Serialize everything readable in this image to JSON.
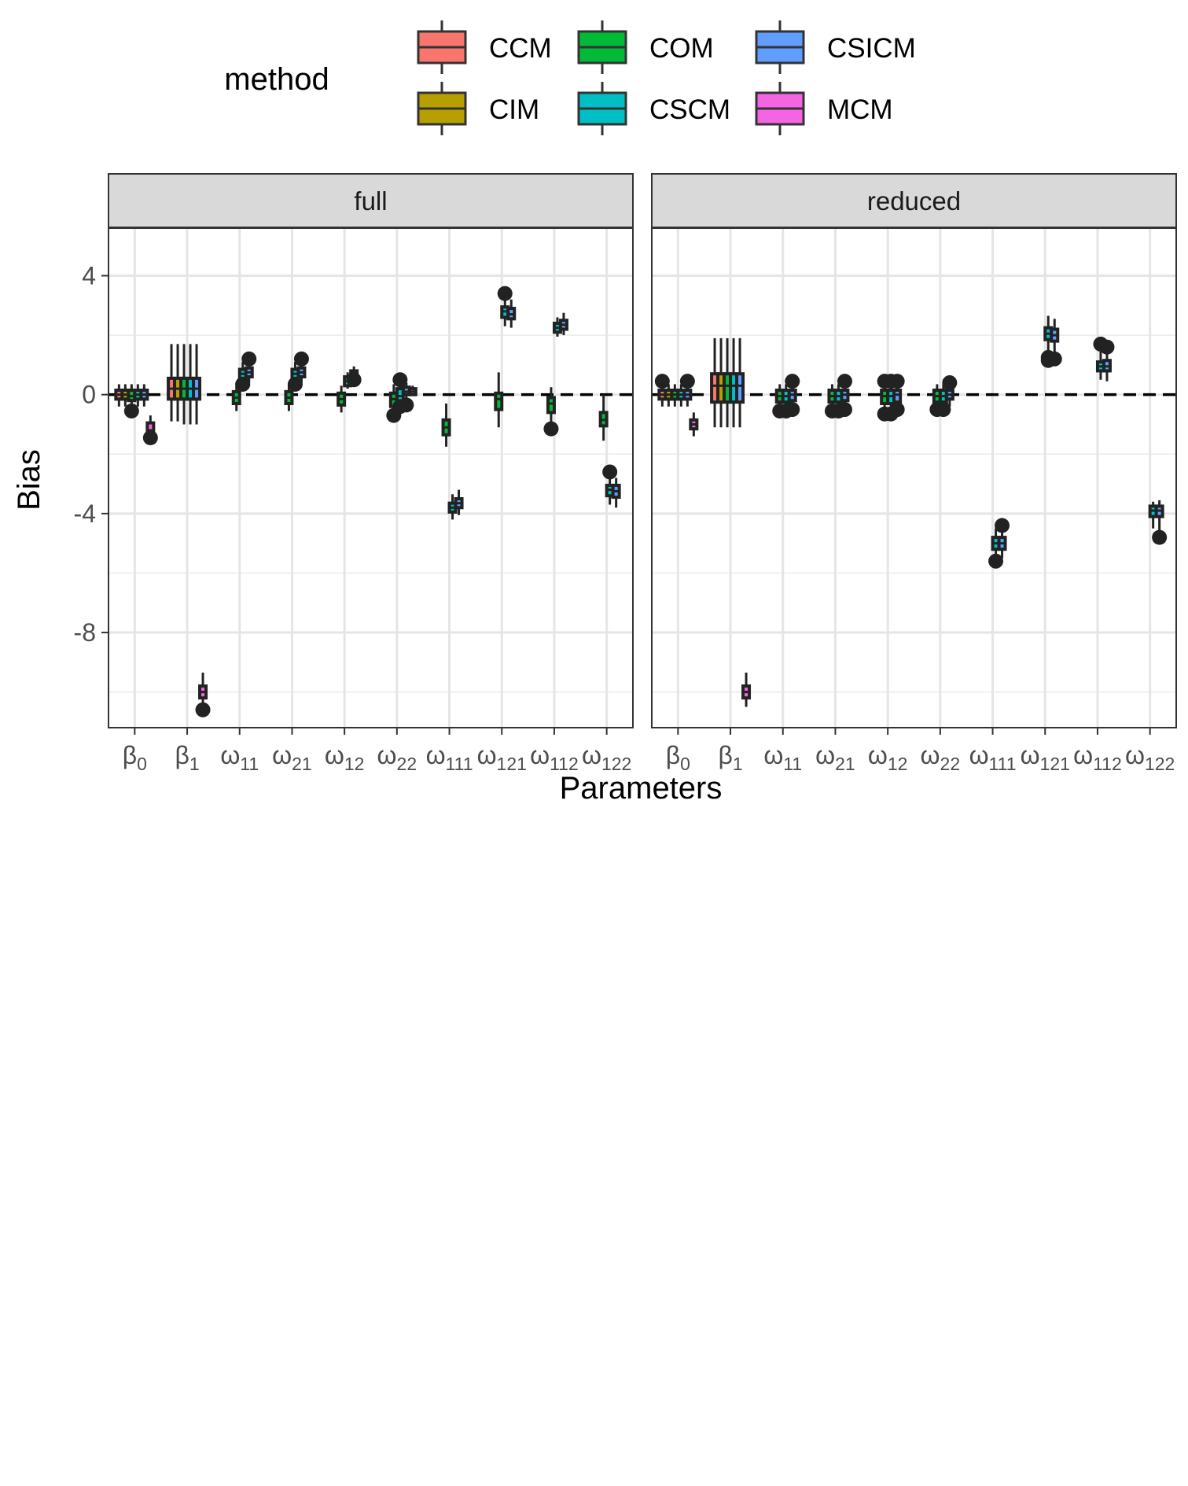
{
  "chart_data": {
    "type": "boxplot",
    "title": "",
    "xlabel": "Parameters",
    "ylabel": "Bias",
    "ylim": [
      -11.2,
      5.6
    ],
    "yticks": [
      4,
      0,
      -4,
      -8
    ],
    "ytick_labels": [
      "4",
      "0",
      "-4",
      "-8"
    ],
    "reference_line": {
      "y": 0,
      "style": "dashed"
    },
    "grid": true,
    "legend": {
      "title": "method",
      "position": "top",
      "entries": [
        {
          "name": "CCM",
          "color": "#F8766D"
        },
        {
          "name": "COM",
          "color": "#00BA38"
        },
        {
          "name": "CSICM",
          "color": "#619CFF"
        },
        {
          "name": "CIM",
          "color": "#B79F00"
        },
        {
          "name": "CSCM",
          "color": "#00BFC4"
        },
        {
          "name": "MCM",
          "color": "#F564E3"
        }
      ]
    },
    "categories": [
      {
        "base": "β",
        "sub": "0"
      },
      {
        "base": "β",
        "sub": "1"
      },
      {
        "base": "ω",
        "sub": "11"
      },
      {
        "base": "ω",
        "sub": "21"
      },
      {
        "base": "ω",
        "sub": "12"
      },
      {
        "base": "ω",
        "sub": "22"
      },
      {
        "base": "ω",
        "sub": "111"
      },
      {
        "base": "ω",
        "sub": "121"
      },
      {
        "base": "ω",
        "sub": "112"
      },
      {
        "base": "ω",
        "sub": "122"
      }
    ],
    "methods_order": [
      "CCM",
      "CIM",
      "COM",
      "CSCM",
      "CSICM",
      "MCM"
    ],
    "panels": [
      {
        "name": "full",
        "boxes": [
          {
            "cat": 0,
            "m": 0,
            "q1": -0.15,
            "med": 0,
            "q3": 0.15,
            "lo": -0.4,
            "hi": 0.35,
            "out": []
          },
          {
            "cat": 0,
            "m": 1,
            "q1": -0.15,
            "med": 0,
            "q3": 0.15,
            "lo": -0.4,
            "hi": 0.35,
            "out": []
          },
          {
            "cat": 0,
            "m": 2,
            "q1": -0.2,
            "med": -0.05,
            "q3": 0.15,
            "lo": -0.55,
            "hi": 0.35,
            "out": [
              -0.55
            ]
          },
          {
            "cat": 0,
            "m": 3,
            "q1": -0.15,
            "med": 0,
            "q3": 0.15,
            "lo": -0.4,
            "hi": 0.35,
            "out": []
          },
          {
            "cat": 0,
            "m": 4,
            "q1": -0.15,
            "med": 0,
            "q3": 0.15,
            "lo": -0.4,
            "hi": 0.35,
            "out": []
          },
          {
            "cat": 0,
            "m": 5,
            "q1": -1.35,
            "med": -1.2,
            "q3": -0.95,
            "lo": -1.65,
            "hi": -0.7,
            "out": [
              -1.45
            ]
          },
          {
            "cat": 1,
            "m": 0,
            "q1": -0.15,
            "med": 0.2,
            "q3": 0.55,
            "lo": -0.9,
            "hi": 1.7,
            "out": []
          },
          {
            "cat": 1,
            "m": 1,
            "q1": -0.15,
            "med": 0.2,
            "q3": 0.55,
            "lo": -0.9,
            "hi": 1.7,
            "out": []
          },
          {
            "cat": 1,
            "m": 2,
            "q1": -0.15,
            "med": 0.2,
            "q3": 0.55,
            "lo": -1.0,
            "hi": 1.7,
            "out": []
          },
          {
            "cat": 1,
            "m": 3,
            "q1": -0.15,
            "med": 0.2,
            "q3": 0.55,
            "lo": -1.0,
            "hi": 1.7,
            "out": []
          },
          {
            "cat": 1,
            "m": 4,
            "q1": -0.15,
            "med": 0.2,
            "q3": 0.55,
            "lo": -1.0,
            "hi": 1.7,
            "out": []
          },
          {
            "cat": 1,
            "m": 5,
            "q1": -10.2,
            "med": -10.0,
            "q3": -9.8,
            "lo": -10.4,
            "hi": -9.35,
            "out": [
              -10.6
            ]
          },
          {
            "cat": 2,
            "m": 2,
            "q1": -0.3,
            "med": -0.1,
            "q3": 0.1,
            "lo": -0.55,
            "hi": 0.4,
            "out": []
          },
          {
            "cat": 2,
            "m": 3,
            "q1": 0.55,
            "med": 0.7,
            "q3": 0.85,
            "lo": 0.35,
            "hi": 1.1,
            "out": [
              0.35
            ]
          },
          {
            "cat": 2,
            "m": 4,
            "q1": 0.6,
            "med": 0.75,
            "q3": 0.9,
            "lo": 0.4,
            "hi": 1.15,
            "out": [
              1.2
            ]
          },
          {
            "cat": 3,
            "m": 2,
            "q1": -0.3,
            "med": -0.1,
            "q3": 0.1,
            "lo": -0.55,
            "hi": 0.4,
            "out": []
          },
          {
            "cat": 3,
            "m": 3,
            "q1": 0.55,
            "med": 0.7,
            "q3": 0.85,
            "lo": 0.35,
            "hi": 1.1,
            "out": [
              0.35
            ]
          },
          {
            "cat": 3,
            "m": 4,
            "q1": 0.6,
            "med": 0.75,
            "q3": 0.9,
            "lo": 0.4,
            "hi": 1.15,
            "out": [
              1.2
            ]
          },
          {
            "cat": 4,
            "m": 2,
            "q1": -0.35,
            "med": -0.15,
            "q3": 0.05,
            "lo": -0.6,
            "hi": 0.3,
            "out": []
          },
          {
            "cat": 4,
            "m": 3,
            "q1": 0.3,
            "med": 0.45,
            "q3": 0.6,
            "lo": 0.2,
            "hi": 0.75,
            "out": []
          },
          {
            "cat": 4,
            "m": 4,
            "q1": 0.55,
            "med": 0.7,
            "q3": 0.8,
            "lo": 0.4,
            "hi": 0.95,
            "out": [
              0.5
            ]
          },
          {
            "cat": 5,
            "m": 2,
            "q1": -0.4,
            "med": -0.15,
            "q3": 0.05,
            "lo": -0.65,
            "hi": 0.35,
            "out": [
              -0.7
            ]
          },
          {
            "cat": 5,
            "m": 3,
            "q1": -0.25,
            "med": -0.05,
            "q3": 0.2,
            "lo": -0.45,
            "hi": 0.5,
            "out": [
              0.5,
              -0.4
            ]
          },
          {
            "cat": 5,
            "m": 4,
            "q1": 0,
            "med": 0.1,
            "q3": 0.25,
            "lo": -0.3,
            "hi": 0.4,
            "out": [
              -0.35
            ]
          },
          {
            "cat": 5,
            "m": 5,
            "q1": 0,
            "med": 0.1,
            "q3": 0.2,
            "lo": -0.05,
            "hi": 0.3,
            "out": []
          },
          {
            "cat": 6,
            "m": 2,
            "q1": -1.35,
            "med": -1.1,
            "q3": -0.85,
            "lo": -1.75,
            "hi": -0.3,
            "out": []
          },
          {
            "cat": 6,
            "m": 3,
            "q1": -3.95,
            "med": -3.8,
            "q3": -3.65,
            "lo": -4.2,
            "hi": -3.35,
            "out": []
          },
          {
            "cat": 6,
            "m": 4,
            "q1": -3.8,
            "med": -3.65,
            "q3": -3.5,
            "lo": -4.05,
            "hi": -3.2,
            "out": []
          },
          {
            "cat": 7,
            "m": 2,
            "q1": -0.5,
            "med": -0.15,
            "q3": 0.05,
            "lo": -1.1,
            "hi": 0.75,
            "out": []
          },
          {
            "cat": 7,
            "m": 3,
            "q1": 2.6,
            "med": 2.8,
            "q3": 2.95,
            "lo": 2.3,
            "hi": 3.25,
            "out": [
              3.4
            ]
          },
          {
            "cat": 7,
            "m": 4,
            "q1": 2.55,
            "med": 2.7,
            "q3": 2.9,
            "lo": 2.25,
            "hi": 3.2,
            "out": []
          },
          {
            "cat": 8,
            "m": 2,
            "q1": -0.6,
            "med": -0.3,
            "q3": -0.1,
            "lo": -1.0,
            "hi": 0.25,
            "out": [
              -1.15
            ]
          },
          {
            "cat": 8,
            "m": 3,
            "q1": 2.1,
            "med": 2.25,
            "q3": 2.4,
            "lo": 1.95,
            "hi": 2.6,
            "out": []
          },
          {
            "cat": 8,
            "m": 4,
            "q1": 2.2,
            "med": 2.35,
            "q3": 2.5,
            "lo": 2.0,
            "hi": 2.75,
            "out": []
          },
          {
            "cat": 9,
            "m": 2,
            "q1": -1.05,
            "med": -0.85,
            "q3": -0.6,
            "lo": -1.55,
            "hi": 0,
            "out": []
          },
          {
            "cat": 9,
            "m": 3,
            "q1": -3.4,
            "med": -3.2,
            "q3": -3.05,
            "lo": -3.7,
            "hi": -2.8,
            "out": [
              -2.6
            ]
          },
          {
            "cat": 9,
            "m": 4,
            "q1": -3.45,
            "med": -3.25,
            "q3": -3.05,
            "lo": -3.8,
            "hi": -2.8,
            "out": []
          }
        ]
      },
      {
        "name": "reduced",
        "boxes": [
          {
            "cat": 0,
            "m": 0,
            "q1": -0.15,
            "med": 0,
            "q3": 0.15,
            "lo": -0.4,
            "hi": 0.35,
            "out": [
              0.45
            ]
          },
          {
            "cat": 0,
            "m": 1,
            "q1": -0.15,
            "med": 0,
            "q3": 0.15,
            "lo": -0.4,
            "hi": 0.35,
            "out": []
          },
          {
            "cat": 0,
            "m": 2,
            "q1": -0.15,
            "med": 0,
            "q3": 0.15,
            "lo": -0.4,
            "hi": 0.35,
            "out": []
          },
          {
            "cat": 0,
            "m": 3,
            "q1": -0.15,
            "med": 0,
            "q3": 0.15,
            "lo": -0.4,
            "hi": 0.35,
            "out": []
          },
          {
            "cat": 0,
            "m": 4,
            "q1": -0.15,
            "med": 0,
            "q3": 0.15,
            "lo": -0.4,
            "hi": 0.35,
            "out": [
              0.45
            ]
          },
          {
            "cat": 0,
            "m": 5,
            "q1": -1.15,
            "med": -1.0,
            "q3": -0.85,
            "lo": -1.4,
            "hi": -0.6,
            "out": []
          },
          {
            "cat": 1,
            "m": 0,
            "q1": -0.25,
            "med": 0.3,
            "q3": 0.7,
            "lo": -1.1,
            "hi": 1.9,
            "out": []
          },
          {
            "cat": 1,
            "m": 1,
            "q1": -0.25,
            "med": 0.3,
            "q3": 0.7,
            "lo": -1.1,
            "hi": 1.9,
            "out": []
          },
          {
            "cat": 1,
            "m": 2,
            "q1": -0.25,
            "med": 0.3,
            "q3": 0.7,
            "lo": -1.1,
            "hi": 1.9,
            "out": []
          },
          {
            "cat": 1,
            "m": 3,
            "q1": -0.25,
            "med": 0.3,
            "q3": 0.7,
            "lo": -1.1,
            "hi": 1.9,
            "out": []
          },
          {
            "cat": 1,
            "m": 4,
            "q1": -0.25,
            "med": 0.3,
            "q3": 0.7,
            "lo": -1.1,
            "hi": 1.9,
            "out": []
          },
          {
            "cat": 1,
            "m": 5,
            "q1": -10.2,
            "med": -10.0,
            "q3": -9.8,
            "lo": -10.5,
            "hi": -9.35,
            "out": []
          },
          {
            "cat": 2,
            "m": 2,
            "q1": -0.25,
            "med": -0.05,
            "q3": 0.15,
            "lo": -0.5,
            "hi": 0.35,
            "out": [
              -0.55
            ]
          },
          {
            "cat": 2,
            "m": 3,
            "q1": -0.25,
            "med": -0.05,
            "q3": 0.15,
            "lo": -0.5,
            "hi": 0.35,
            "out": [
              -0.55
            ]
          },
          {
            "cat": 2,
            "m": 4,
            "q1": -0.2,
            "med": 0,
            "q3": 0.15,
            "lo": -0.45,
            "hi": 0.4,
            "out": [
              0.45,
              -0.5
            ]
          },
          {
            "cat": 3,
            "m": 2,
            "q1": -0.25,
            "med": -0.05,
            "q3": 0.15,
            "lo": -0.5,
            "hi": 0.35,
            "out": [
              -0.55
            ]
          },
          {
            "cat": 3,
            "m": 3,
            "q1": -0.25,
            "med": -0.05,
            "q3": 0.15,
            "lo": -0.5,
            "hi": 0.35,
            "out": [
              -0.55
            ]
          },
          {
            "cat": 3,
            "m": 4,
            "q1": -0.2,
            "med": 0,
            "q3": 0.15,
            "lo": -0.45,
            "hi": 0.4,
            "out": [
              0.45,
              -0.5
            ]
          },
          {
            "cat": 4,
            "m": 2,
            "q1": -0.3,
            "med": -0.05,
            "q3": 0.15,
            "lo": -0.55,
            "hi": 0.4,
            "out": [
              0.45,
              -0.65
            ]
          },
          {
            "cat": 4,
            "m": 3,
            "q1": -0.3,
            "med": -0.05,
            "q3": 0.15,
            "lo": -0.55,
            "hi": 0.4,
            "out": [
              0.45,
              -0.65
            ]
          },
          {
            "cat": 4,
            "m": 4,
            "q1": -0.25,
            "med": 0,
            "q3": 0.15,
            "lo": -0.5,
            "hi": 0.4,
            "out": [
              0.45,
              -0.5
            ]
          },
          {
            "cat": 5,
            "m": 2,
            "q1": -0.25,
            "med": -0.05,
            "q3": 0.15,
            "lo": -0.5,
            "hi": 0.35,
            "out": [
              -0.5
            ]
          },
          {
            "cat": 5,
            "m": 3,
            "q1": -0.25,
            "med": -0.05,
            "q3": 0.15,
            "lo": -0.5,
            "hi": 0.35,
            "out": [
              -0.5
            ]
          },
          {
            "cat": 5,
            "m": 4,
            "q1": -0.15,
            "med": 0,
            "q3": 0.15,
            "lo": -0.4,
            "hi": 0.35,
            "out": [
              0.4
            ]
          },
          {
            "cat": 6,
            "m": 3,
            "q1": -5.2,
            "med": -5.0,
            "q3": -4.8,
            "lo": -5.5,
            "hi": -4.5,
            "out": [
              -5.6
            ]
          },
          {
            "cat": 6,
            "m": 4,
            "q1": -5.2,
            "med": -5.0,
            "q3": -4.8,
            "lo": -5.5,
            "hi": -4.5,
            "out": [
              -4.4
            ]
          },
          {
            "cat": 7,
            "m": 3,
            "q1": 1.85,
            "med": 2.05,
            "q3": 2.25,
            "lo": 1.35,
            "hi": 2.65,
            "out": [
              1.15,
              1.25
            ]
          },
          {
            "cat": 7,
            "m": 4,
            "q1": 1.8,
            "med": 2.0,
            "q3": 2.2,
            "lo": 1.4,
            "hi": 2.55,
            "out": [
              1.2
            ]
          },
          {
            "cat": 8,
            "m": 3,
            "q1": 0.8,
            "med": 0.95,
            "q3": 1.1,
            "lo": 0.5,
            "hi": 1.45,
            "out": [
              1.7
            ]
          },
          {
            "cat": 8,
            "m": 4,
            "q1": 0.8,
            "med": 0.95,
            "q3": 1.15,
            "lo": 0.45,
            "hi": 1.6,
            "out": [
              1.6
            ]
          },
          {
            "cat": 9,
            "m": 3,
            "q1": -4.1,
            "med": -3.9,
            "q3": -3.75,
            "lo": -4.5,
            "hi": -3.6,
            "out": []
          },
          {
            "cat": 9,
            "m": 4,
            "q1": -4.1,
            "med": -3.9,
            "q3": -3.75,
            "lo": -4.6,
            "hi": -3.55,
            "out": [
              -4.8
            ]
          }
        ]
      }
    ]
  }
}
